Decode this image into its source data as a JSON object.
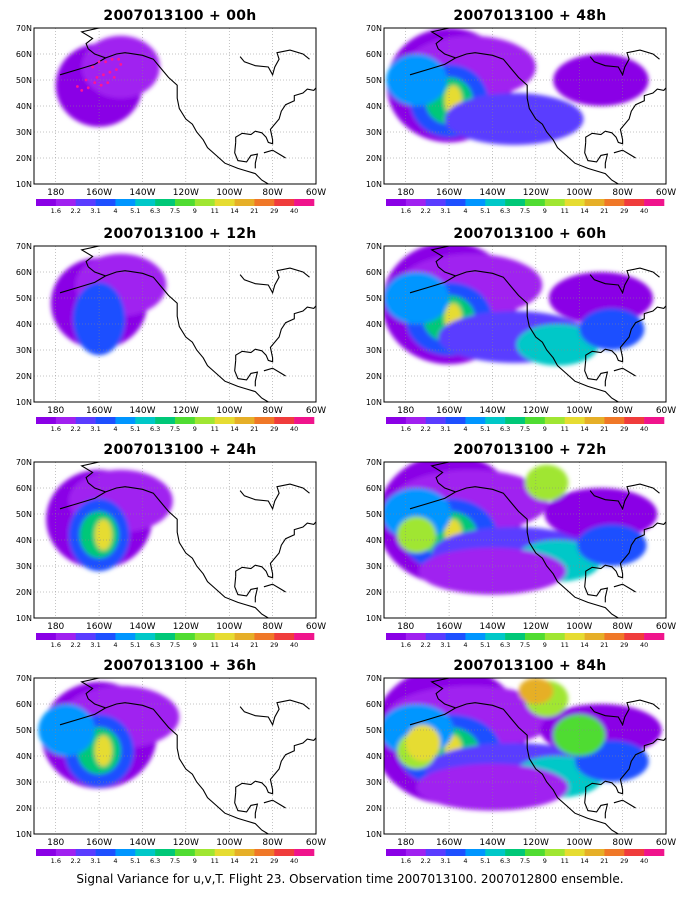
{
  "figure": {
    "caption": "Signal Variance for u,v,T. Flight 23. Observation time 2007013100. 2007012800 ensemble.",
    "lat_ticks": [
      "70N",
      "60N",
      "50N",
      "40N",
      "30N",
      "20N",
      "10N"
    ],
    "lon_ticks": [
      "180",
      "160W",
      "140W",
      "120W",
      "100W",
      "80W",
      "60W"
    ],
    "colorbar": {
      "labels": [
        "1.6",
        "2.2",
        "3.1",
        "4",
        "5.1",
        "6.3",
        "7.5",
        "9",
        "11",
        "14",
        "21",
        "29",
        "40"
      ],
      "colors": [
        "#8a00e6",
        "#a020f0",
        "#5a3cff",
        "#1e50ff",
        "#0096ff",
        "#00c8c8",
        "#00c878",
        "#50dc32",
        "#a0e632",
        "#e6dc32",
        "#e6af28",
        "#f07828",
        "#f03c3c",
        "#f0148c"
      ]
    }
  },
  "panels": [
    {
      "id": "p00",
      "title": "2007013100 + 00h",
      "intensity": 0,
      "observations_shown": true
    },
    {
      "id": "p48",
      "title": "2007013100 + 48h",
      "intensity": 4
    },
    {
      "id": "p12",
      "title": "2007013100 + 12h",
      "intensity": 1
    },
    {
      "id": "p60",
      "title": "2007013100 + 60h",
      "intensity": 5
    },
    {
      "id": "p24",
      "title": "2007013100 + 24h",
      "intensity": 2
    },
    {
      "id": "p72",
      "title": "2007013100 + 72h",
      "intensity": 6
    },
    {
      "id": "p36",
      "title": "2007013100 + 36h",
      "intensity": 3
    },
    {
      "id": "p84",
      "title": "2007013100 + 84h",
      "intensity": 7
    }
  ]
}
